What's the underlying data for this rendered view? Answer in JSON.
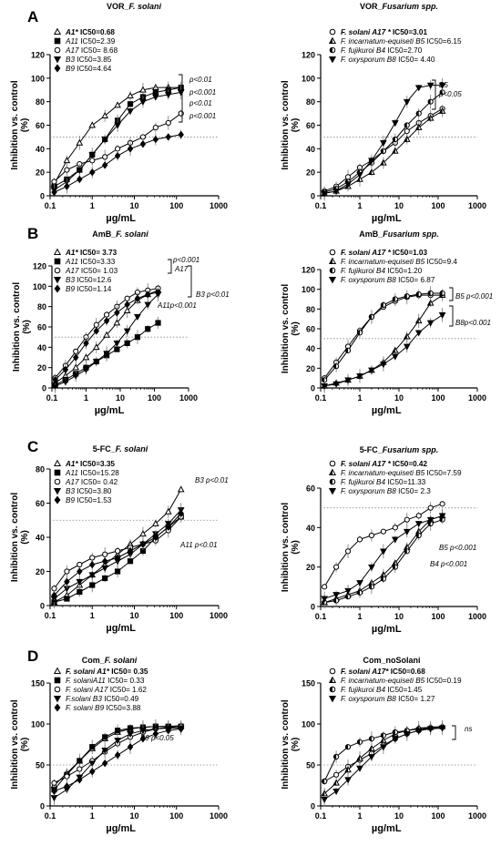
{
  "panel_letters": [
    "A",
    "B",
    "C",
    "D"
  ],
  "common": {
    "ylabel": "Inhibition vs. control",
    "yunit": "(%)",
    "xlabel": "µg/mL",
    "xticks": [
      "0.1",
      "1",
      "10",
      "100",
      "1000"
    ],
    "x_conc": [
      0.125,
      0.25,
      0.5,
      1,
      2,
      4,
      8,
      16,
      32,
      64,
      128
    ]
  },
  "chart_data": [
    {
      "type": "line",
      "title": "VOR_F. solani",
      "title_plain": "VOR_",
      "title_italic": "F. solani",
      "xlabel": "µg/mL",
      "ylabel": "Inhibition vs. control (%)",
      "xlim": [
        0.1,
        1000
      ],
      "ylim": [
        0,
        120
      ],
      "yticks": [
        0,
        20,
        40,
        60,
        80,
        100,
        120
      ],
      "log_x": true,
      "legend": [
        {
          "name": "A1*",
          "ic": "IC50=0.68",
          "bold": true
        },
        {
          "name": "A11",
          "ic": "IC50=2.39"
        },
        {
          "name": "A17",
          "ic": "IC50= 8.68"
        },
        {
          "name": "B3",
          "ic": "IC50=3.85"
        },
        {
          "name": "B9",
          "ic": "IC50=4.64"
        }
      ],
      "annotations": [
        "p<0.01",
        "p<0.001",
        "p<0.01",
        "p<0.001"
      ],
      "series": [
        {
          "name": "A1*",
          "marker": "triangle-open",
          "values": [
            10,
            30,
            45,
            60,
            68,
            77,
            85,
            90,
            92,
            92,
            92
          ]
        },
        {
          "name": "A11",
          "marker": "square",
          "values": [
            8,
            14,
            22,
            35,
            48,
            64,
            78,
            84,
            88,
            90,
            92
          ]
        },
        {
          "name": "A17",
          "marker": "circle-open",
          "values": [
            12,
            22,
            27,
            30,
            33,
            40,
            45,
            50,
            58,
            62,
            70
          ]
        },
        {
          "name": "B3",
          "marker": "triangle-down",
          "values": [
            5,
            12,
            22,
            35,
            48,
            60,
            72,
            80,
            84,
            86,
            88
          ]
        },
        {
          "name": "B9",
          "marker": "diamond",
          "values": [
            3,
            8,
            14,
            20,
            26,
            34,
            40,
            44,
            48,
            50,
            52
          ]
        }
      ]
    },
    {
      "type": "line",
      "title": "VOR_Fusarium spp.",
      "title_plain": "VOR_",
      "title_italic": "Fusarium spp.",
      "xlabel": "µg/mL",
      "ylabel": "Inhibition vs. control (%)",
      "xlim": [
        0.1,
        1000
      ],
      "ylim": [
        0,
        120
      ],
      "yticks": [
        0,
        20,
        40,
        60,
        80,
        100,
        120
      ],
      "log_x": true,
      "legend": [
        {
          "name": "F. solani A17 *",
          "ic": "IC50=3.01",
          "bold": true
        },
        {
          "name": "F. incarnatum-equiseti B5",
          "ic": "IC50=6.15"
        },
        {
          "name": "F. fujikuroi B4",
          "ic": "IC50=2.70"
        },
        {
          "name": "F. oxysporum B8",
          "ic": "IC50= 4.40"
        }
      ],
      "annotations": [
        "B5",
        "p<0.05"
      ],
      "series": [
        {
          "name": "F. solani A17 *",
          "marker": "circle-open",
          "values": [
            4,
            8,
            16,
            24,
            30,
            38,
            45,
            55,
            62,
            68,
            74
          ]
        },
        {
          "name": "F. incarnatum-equiseti B5",
          "marker": "triangle-half",
          "values": [
            2,
            4,
            8,
            14,
            20,
            28,
            38,
            48,
            58,
            66,
            72
          ]
        },
        {
          "name": "F. fujikuroi B4",
          "marker": "circle-half",
          "values": [
            3,
            6,
            12,
            20,
            28,
            38,
            48,
            60,
            70,
            80,
            88
          ]
        },
        {
          "name": "F. oxysporum B8",
          "marker": "triangle-down",
          "values": [
            2,
            4,
            10,
            18,
            30,
            45,
            62,
            80,
            92,
            94,
            94
          ]
        }
      ]
    },
    {
      "type": "line",
      "title": "AmB_F. solani",
      "title_plain": "AmB_",
      "title_italic": "F. solani",
      "xlabel": "µg/mL",
      "ylabel": "Inhibition vs. control (%)",
      "xlim": [
        0.1,
        1000
      ],
      "ylim": [
        0,
        120
      ],
      "yticks": [
        0,
        20,
        40,
        60,
        80,
        100,
        120
      ],
      "log_x": true,
      "legend": [
        {
          "name": "A1*",
          "ic": "IC50= 3.73",
          "bold": true
        },
        {
          "name": "A11",
          "ic": "IC50=3.33"
        },
        {
          "name": "A17",
          "ic": "IC50= 1.03"
        },
        {
          "name": "B3",
          "ic": "IC50=12.6"
        },
        {
          "name": "B9",
          "ic": "IC50=1.14"
        }
      ],
      "annotations": [
        "p<0.001",
        "A17",
        "B3 p<0.01",
        "A11p<0.001"
      ],
      "series": [
        {
          "name": "A1*",
          "marker": "triangle-open",
          "values": [
            5,
            12,
            20,
            30,
            40,
            52,
            64,
            76,
            86,
            92,
            96
          ]
        },
        {
          "name": "A11",
          "marker": "square",
          "values": [
            3,
            8,
            14,
            20,
            26,
            32,
            38,
            44,
            50,
            58,
            64
          ]
        },
        {
          "name": "A17",
          "marker": "circle-open",
          "values": [
            10,
            22,
            36,
            50,
            62,
            72,
            80,
            88,
            94,
            96,
            98
          ]
        },
        {
          "name": "B3",
          "marker": "triangle-down",
          "values": [
            2,
            6,
            12,
            18,
            26,
            34,
            44,
            56,
            70,
            82,
            92
          ]
        },
        {
          "name": "B9",
          "marker": "diamond",
          "values": [
            8,
            18,
            30,
            44,
            56,
            66,
            74,
            82,
            88,
            92,
            94
          ]
        }
      ]
    },
    {
      "type": "line",
      "title": "AmB_Fusarium spp.",
      "title_plain": "AmB_",
      "title_italic": "Fusarium spp.",
      "xlabel": "µg/mL",
      "ylabel": "Inhibition vs. control (%)",
      "xlim": [
        0.1,
        1000
      ],
      "ylim": [
        0,
        120
      ],
      "yticks": [
        0,
        20,
        40,
        60,
        80,
        100,
        120
      ],
      "log_x": true,
      "legend": [
        {
          "name": "F. solani A17 *",
          "ic": "IC50=1.03",
          "bold": true
        },
        {
          "name": "F. incarnatum-equiseti B5",
          "ic": "IC50=9.4"
        },
        {
          "name": "F. fujikuroi B4",
          "ic": "IC50=1.20"
        },
        {
          "name": "F. oxysporum B8",
          "ic": "IC50= 6.87"
        }
      ],
      "annotations": [
        "B5 p<0.001",
        "B8p<0.001"
      ],
      "series": [
        {
          "name": "F. solani A17 *",
          "marker": "circle-open",
          "values": [
            10,
            26,
            42,
            58,
            72,
            82,
            88,
            92,
            94,
            94,
            94
          ]
        },
        {
          "name": "F. incarnatum-equiseti B5",
          "marker": "triangle-half",
          "values": [
            2,
            5,
            8,
            12,
            18,
            26,
            38,
            52,
            68,
            86,
            94
          ]
        },
        {
          "name": "F. fujikuroi B4",
          "marker": "circle-half",
          "values": [
            8,
            22,
            38,
            56,
            72,
            84,
            90,
            93,
            95,
            96,
            96
          ]
        },
        {
          "name": "F. oxysporum B8",
          "marker": "triangle-down",
          "values": [
            2,
            4,
            8,
            12,
            18,
            24,
            32,
            42,
            56,
            66,
            74
          ]
        }
      ]
    },
    {
      "type": "line",
      "title": "5-FC_F. solani",
      "title_plain": "5-FC_",
      "title_italic": "F. solani",
      "xlabel": "µg/mL",
      "ylabel": "Inhibition vs. control (%)",
      "xlim": [
        0.1,
        1000
      ],
      "ylim": [
        0,
        80
      ],
      "yticks": [
        0,
        20,
        40,
        60,
        80
      ],
      "log_x": true,
      "legend": [
        {
          "name": "A1*",
          "ic": "IC50=3.35",
          "bold": true
        },
        {
          "name": "A11",
          "ic": "IC50=15.28"
        },
        {
          "name": "A17",
          "ic": "IC50= 0.42"
        },
        {
          "name": "B3",
          "ic": "IC50=3.80"
        },
        {
          "name": "B9",
          "ic": "IC50=1.53"
        }
      ],
      "annotations": [
        "B3 p<0.01",
        "A11 p<0.01"
      ],
      "series": [
        {
          "name": "A1*",
          "marker": "triangle-open",
          "values": [
            2,
            6,
            12,
            18,
            24,
            30,
            36,
            42,
            48,
            55,
            68
          ]
        },
        {
          "name": "A11",
          "marker": "square",
          "values": [
            2,
            4,
            8,
            12,
            16,
            20,
            26,
            32,
            40,
            46,
            52
          ]
        },
        {
          "name": "A17",
          "marker": "circle-open",
          "values": [
            10,
            20,
            24,
            28,
            30,
            32,
            34,
            36,
            38,
            44,
            52
          ]
        },
        {
          "name": "B3",
          "marker": "triangle-down",
          "values": [
            4,
            10,
            14,
            18,
            22,
            26,
            30,
            36,
            42,
            48,
            56
          ]
        },
        {
          "name": "B9",
          "marker": "diamond",
          "values": [
            6,
            14,
            20,
            24,
            26,
            28,
            32,
            36,
            40,
            46,
            54
          ]
        }
      ]
    },
    {
      "type": "line",
      "title": "5-FC_Fusarium spp.",
      "title_plain": "5-FC_",
      "title_italic": "Fusarium spp.",
      "xlabel": "µg/mL",
      "ylabel": "Inhibition vs. control (%)",
      "xlim": [
        0.1,
        1000
      ],
      "ylim": [
        0,
        60
      ],
      "yticks": [
        0,
        20,
        40,
        60
      ],
      "log_x": true,
      "legend": [
        {
          "name": "F. solani A17 *",
          "ic": "IC50=0.42",
          "bold": true
        },
        {
          "name": "F. incarnatum-equiseti B5",
          "ic": "IC50=7.59"
        },
        {
          "name": "F. fujikuroi B4",
          "ic": "IC50=11.33"
        },
        {
          "name": "F. oxysporum B8",
          "ic": "IC50= 2.3"
        }
      ],
      "annotations": [
        "B5 p<0.001",
        "B4 p<0.001"
      ],
      "series": [
        {
          "name": "F. solani A17 *",
          "marker": "circle-open",
          "values": [
            10,
            20,
            28,
            34,
            36,
            38,
            40,
            44,
            46,
            50,
            52
          ]
        },
        {
          "name": "F. incarnatum-equiseti B5",
          "marker": "triangle-half",
          "values": [
            2,
            4,
            6,
            8,
            12,
            16,
            22,
            30,
            38,
            44,
            46
          ]
        },
        {
          "name": "F. fujikuroi B4",
          "marker": "circle-half",
          "values": [
            2,
            3,
            5,
            7,
            10,
            14,
            20,
            28,
            36,
            42,
            44
          ]
        },
        {
          "name": "F. oxysporum B8",
          "marker": "triangle-down",
          "values": [
            4,
            6,
            8,
            12,
            20,
            28,
            34,
            38,
            42,
            44,
            46
          ]
        }
      ]
    },
    {
      "type": "line",
      "title": "Com_F. solani",
      "title_plain": "Com_",
      "title_italic": "F. solani",
      "xlabel": "µg/mL",
      "ylabel": "Inhibition vs. control (%)",
      "xlim": [
        0.1,
        1000
      ],
      "ylim": [
        0,
        150
      ],
      "yticks": [
        0,
        50,
        100,
        150
      ],
      "log_x": true,
      "legend": [
        {
          "name": "F. solani A1*",
          "ic": "IC50= 0.35",
          "bold": true
        },
        {
          "name": "F. solaniA11",
          "ic": "IC50= 0.33"
        },
        {
          "name": "F. solani A17",
          "ic": "IC50= 1.62"
        },
        {
          "name": "F.solani B3",
          "ic": "IC50=0.49"
        },
        {
          "name": "F. solani B9",
          "ic": "IC50=3.88"
        }
      ],
      "annotations": [
        "B9 p<0.05"
      ],
      "series": [
        {
          "name": "F. solani A1*",
          "marker": "triangle-open",
          "values": [
            25,
            40,
            55,
            70,
            82,
            90,
            94,
            96,
            97,
            97,
            98
          ]
        },
        {
          "name": "F. solaniA11",
          "marker": "square",
          "values": [
            20,
            38,
            55,
            72,
            84,
            92,
            95,
            96,
            97,
            97,
            97
          ]
        },
        {
          "name": "F. solani A17",
          "marker": "circle-open",
          "values": [
            28,
            36,
            45,
            55,
            66,
            76,
            84,
            90,
            94,
            96,
            97
          ]
        },
        {
          "name": "F.solani B3",
          "marker": "triangle-down",
          "values": [
            10,
            20,
            35,
            52,
            68,
            80,
            88,
            92,
            94,
            95,
            95
          ]
        },
        {
          "name": "F. solani B9",
          "marker": "diamond",
          "values": [
            18,
            24,
            32,
            42,
            52,
            62,
            72,
            82,
            88,
            92,
            94
          ]
        }
      ]
    },
    {
      "type": "line",
      "title": "Com_noSolani",
      "title_plain": "Com_noSolani",
      "title_italic": "",
      "xlabel": "µg/mL",
      "ylabel": "Inhibition vs. control (%)",
      "xlim": [
        0.1,
        1000
      ],
      "ylim": [
        0,
        150
      ],
      "yticks": [
        0,
        50,
        100,
        150
      ],
      "log_x": true,
      "legend": [
        {
          "name": "F. solani A17*",
          "ic": "IC50=0.68",
          "bold": true
        },
        {
          "name": "F. incarnatum-equiseti B5",
          "ic": "IC50=0.19"
        },
        {
          "name": "F. fujikuroi B4",
          "ic": "IC50=1.45"
        },
        {
          "name": "F. oxysporum B8",
          "ic": "IC50= 1.27"
        }
      ],
      "annotations": [
        "ns"
      ],
      "series": [
        {
          "name": "F. solani A17*",
          "marker": "circle-open",
          "values": [
            30,
            38,
            48,
            56,
            64,
            74,
            82,
            88,
            92,
            95,
            96
          ]
        },
        {
          "name": "F. incarnatum-equiseti B5",
          "marker": "triangle-half",
          "values": [
            15,
            28,
            44,
            58,
            70,
            80,
            88,
            92,
            95,
            96,
            97
          ]
        },
        {
          "name": "F. fujikuroi B4",
          "marker": "circle-half",
          "values": [
            30,
            60,
            72,
            78,
            82,
            86,
            90,
            92,
            94,
            95,
            96
          ]
        },
        {
          "name": "F. oxysporum B8",
          "marker": "triangle-down",
          "values": [
            8,
            18,
            32,
            46,
            60,
            72,
            82,
            88,
            92,
            94,
            95
          ]
        }
      ]
    }
  ]
}
